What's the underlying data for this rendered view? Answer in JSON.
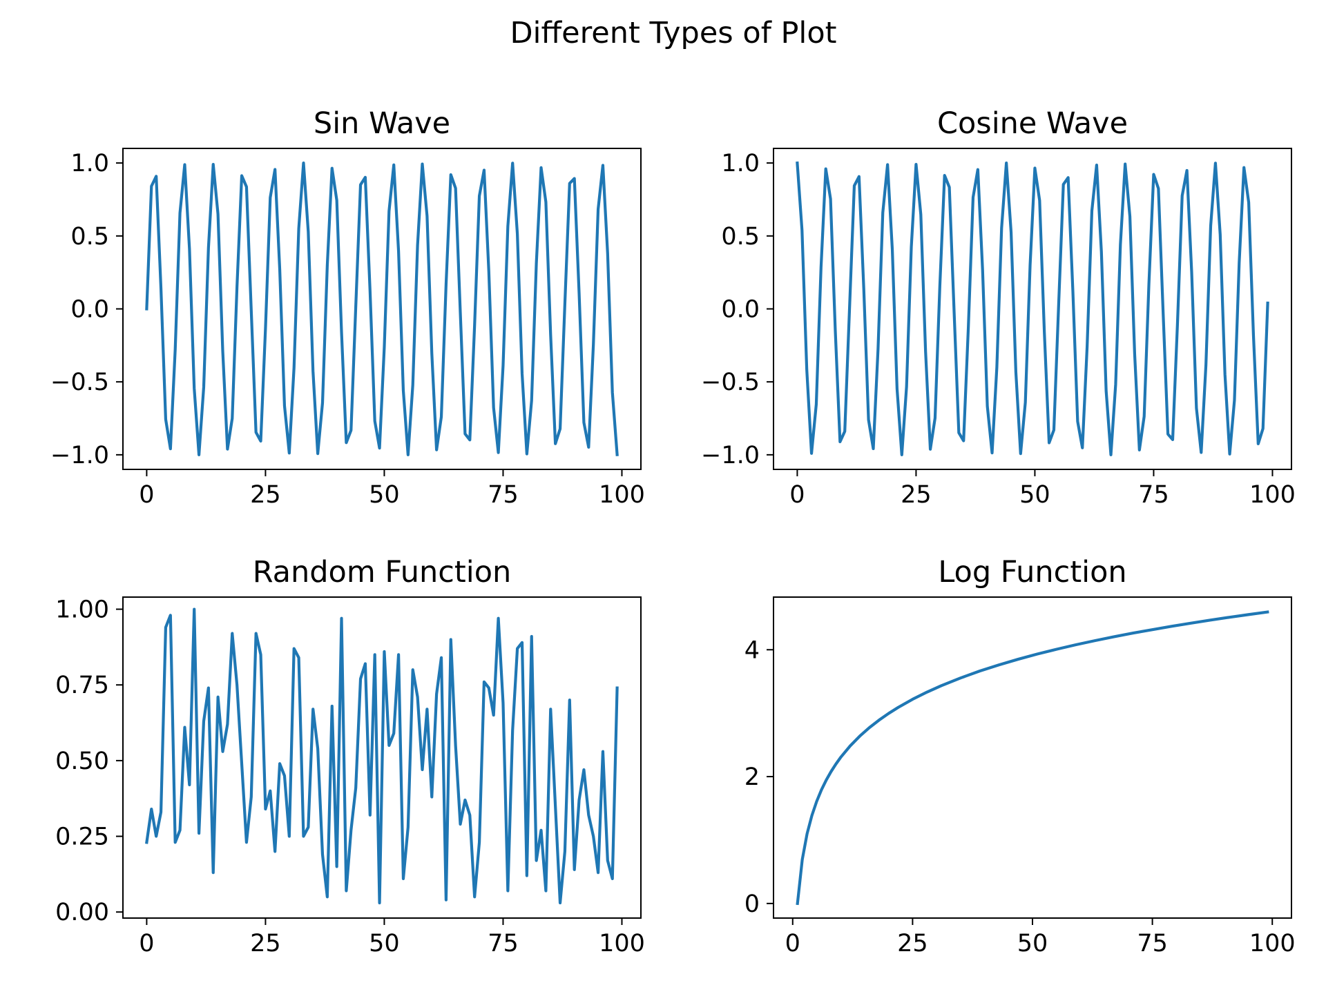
{
  "figure": {
    "title": "Different Types of Plot"
  },
  "style": {
    "line_color": "#1f77b4",
    "axis_color": "#000000",
    "background": "#ffffff"
  },
  "chart_data": [
    {
      "type": "line",
      "title": "Sin Wave",
      "xlabel": "",
      "ylabel": "",
      "xlim": [
        -5,
        104
      ],
      "ylim": [
        -1.1,
        1.1
      ],
      "xticks": [
        0,
        25,
        50,
        75,
        100
      ],
      "yticks": [
        -1.0,
        -0.5,
        0.0,
        0.5,
        1.0
      ],
      "xtick_labels": [
        "0",
        "25",
        "50",
        "75",
        "100"
      ],
      "ytick_labels": [
        "−1.0",
        "−0.5",
        "0.0",
        "0.5",
        "1.0"
      ],
      "grid": false,
      "x": [
        0,
        1,
        2,
        3,
        4,
        5,
        6,
        7,
        8,
        9,
        10,
        11,
        12,
        13,
        14,
        15,
        16,
        17,
        18,
        19,
        20,
        21,
        22,
        23,
        24,
        25,
        26,
        27,
        28,
        29,
        30,
        31,
        32,
        33,
        34,
        35,
        36,
        37,
        38,
        39,
        40,
        41,
        42,
        43,
        44,
        45,
        46,
        47,
        48,
        49,
        50,
        51,
        52,
        53,
        54,
        55,
        56,
        57,
        58,
        59,
        60,
        61,
        62,
        63,
        64,
        65,
        66,
        67,
        68,
        69,
        70,
        71,
        72,
        73,
        74,
        75,
        76,
        77,
        78,
        79,
        80,
        81,
        82,
        83,
        84,
        85,
        86,
        87,
        88,
        89,
        90,
        91,
        92,
        93,
        94,
        95,
        96,
        97,
        98,
        99
      ],
      "values": [
        0,
        0.841,
        0.909,
        0.141,
        -0.757,
        -0.959,
        -0.279,
        0.657,
        0.989,
        0.412,
        -0.544,
        -1.0,
        -0.537,
        0.42,
        0.991,
        0.65,
        -0.288,
        -0.961,
        -0.751,
        0.15,
        0.913,
        0.837,
        -0.009,
        -0.846,
        -0.906,
        -0.132,
        0.763,
        0.956,
        0.271,
        -0.664,
        -0.988,
        -0.404,
        0.551,
        1.0,
        0.529,
        -0.428,
        -0.992,
        -0.644,
        0.296,
        0.964,
        0.745,
        -0.159,
        -0.917,
        -0.832,
        0.018,
        0.851,
        0.902,
        0.124,
        -0.768,
        -0.954,
        -0.262,
        0.67,
        0.987,
        0.396,
        -0.559,
        -1.0,
        -0.522,
        0.436,
        0.993,
        0.637,
        -0.305,
        -0.966,
        -0.74,
        0.167,
        0.92,
        0.827,
        -0.027,
        -0.856,
        -0.898,
        -0.115,
        0.774,
        0.951,
        0.254,
        -0.677,
        -0.985,
        -0.388,
        0.566,
        0.999,
        0.514,
        -0.444,
        -0.994,
        -0.629,
        0.313,
        0.968,
        0.733,
        -0.176,
        -0.924,
        -0.822,
        0.035,
        0.86,
        0.894,
        0.106,
        -0.779,
        -0.948,
        -0.245,
        0.683,
        0.984,
        0.38,
        -0.573,
        -0.999
      ]
    },
    {
      "type": "line",
      "title": "Cosine Wave",
      "xlabel": "",
      "ylabel": "",
      "xlim": [
        -5,
        104
      ],
      "ylim": [
        -1.1,
        1.1
      ],
      "xticks": [
        0,
        25,
        50,
        75,
        100
      ],
      "yticks": [
        -1.0,
        -0.5,
        0.0,
        0.5,
        1.0
      ],
      "xtick_labels": [
        "0",
        "25",
        "50",
        "75",
        "100"
      ],
      "ytick_labels": [
        "−1.0",
        "−0.5",
        "0.0",
        "0.5",
        "1.0"
      ],
      "grid": false,
      "x": [
        0,
        1,
        2,
        3,
        4,
        5,
        6,
        7,
        8,
        9,
        10,
        11,
        12,
        13,
        14,
        15,
        16,
        17,
        18,
        19,
        20,
        21,
        22,
        23,
        24,
        25,
        26,
        27,
        28,
        29,
        30,
        31,
        32,
        33,
        34,
        35,
        36,
        37,
        38,
        39,
        40,
        41,
        42,
        43,
        44,
        45,
        46,
        47,
        48,
        49,
        50,
        51,
        52,
        53,
        54,
        55,
        56,
        57,
        58,
        59,
        60,
        61,
        62,
        63,
        64,
        65,
        66,
        67,
        68,
        69,
        70,
        71,
        72,
        73,
        74,
        75,
        76,
        77,
        78,
        79,
        80,
        81,
        82,
        83,
        84,
        85,
        86,
        87,
        88,
        89,
        90,
        91,
        92,
        93,
        94,
        95,
        96,
        97,
        98,
        99
      ],
      "values": [
        1.0,
        0.54,
        -0.416,
        -0.99,
        -0.654,
        0.284,
        0.96,
        0.754,
        -0.146,
        -0.911,
        -0.839,
        0.004,
        0.844,
        0.907,
        0.137,
        -0.76,
        -0.958,
        -0.275,
        0.66,
        0.989,
        0.408,
        -0.548,
        -1.0,
        -0.533,
        0.424,
        0.991,
        0.647,
        -0.292,
        -0.962,
        -0.748,
        0.154,
        0.915,
        0.834,
        -0.013,
        -0.849,
        -0.904,
        -0.128,
        0.765,
        0.955,
        0.267,
        -0.667,
        -0.987,
        -0.4,
        0.555,
        1.0,
        0.525,
        -0.432,
        -0.992,
        -0.64,
        0.301,
        0.965,
        0.743,
        -0.163,
        -0.918,
        -0.83,
        0.022,
        0.853,
        0.9,
        0.119,
        -0.771,
        -0.952,
        -0.258,
        0.673,
        0.986,
        0.392,
        -0.562,
        -1.0,
        -0.518,
        0.44,
        0.993,
        0.633,
        -0.309,
        -0.967,
        -0.737,
        0.172,
        0.922,
        0.825,
        -0.031,
        -0.858,
        -0.896,
        -0.11,
        0.776,
        0.949,
        0.25,
        -0.68,
        -0.984,
        -0.384,
        0.57,
        0.999,
        0.51,
        -0.448,
        -0.995,
        -0.626,
        0.318,
        0.969,
        0.73,
        -0.18,
        -0.925,
        -0.82,
        0.04
      ]
    },
    {
      "type": "line",
      "title": "Random Function",
      "xlabel": "",
      "ylabel": "",
      "xlim": [
        -5,
        104
      ],
      "ylim": [
        -0.02,
        1.04
      ],
      "xticks": [
        0,
        25,
        50,
        75,
        100
      ],
      "yticks": [
        0.0,
        0.25,
        0.5,
        0.75,
        1.0
      ],
      "xtick_labels": [
        "0",
        "25",
        "50",
        "75",
        "100"
      ],
      "ytick_labels": [
        "0.00",
        "0.25",
        "0.50",
        "0.75",
        "1.00"
      ],
      "grid": false,
      "x": [
        0,
        1,
        2,
        3,
        4,
        5,
        6,
        7,
        8,
        9,
        10,
        11,
        12,
        13,
        14,
        15,
        16,
        17,
        18,
        19,
        20,
        21,
        22,
        23,
        24,
        25,
        26,
        27,
        28,
        29,
        30,
        31,
        32,
        33,
        34,
        35,
        36,
        37,
        38,
        39,
        40,
        41,
        42,
        43,
        44,
        45,
        46,
        47,
        48,
        49,
        50,
        51,
        52,
        53,
        54,
        55,
        56,
        57,
        58,
        59,
        60,
        61,
        62,
        63,
        64,
        65,
        66,
        67,
        68,
        69,
        70,
        71,
        72,
        73,
        74,
        75,
        76,
        77,
        78,
        79,
        80,
        81,
        82,
        83,
        84,
        85,
        86,
        87,
        88,
        89,
        90,
        91,
        92,
        93,
        94,
        95,
        96,
        97,
        98,
        99
      ],
      "values": [
        0.23,
        0.34,
        0.25,
        0.33,
        0.94,
        0.98,
        0.23,
        0.27,
        0.61,
        0.42,
        1.0,
        0.26,
        0.63,
        0.74,
        0.13,
        0.71,
        0.53,
        0.62,
        0.92,
        0.75,
        0.49,
        0.23,
        0.38,
        0.92,
        0.85,
        0.34,
        0.4,
        0.2,
        0.49,
        0.45,
        0.25,
        0.87,
        0.84,
        0.25,
        0.28,
        0.67,
        0.54,
        0.19,
        0.05,
        0.68,
        0.15,
        0.97,
        0.07,
        0.27,
        0.41,
        0.77,
        0.82,
        0.32,
        0.85,
        0.03,
        0.86,
        0.55,
        0.59,
        0.85,
        0.11,
        0.28,
        0.8,
        0.71,
        0.47,
        0.67,
        0.38,
        0.72,
        0.84,
        0.04,
        0.9,
        0.55,
        0.29,
        0.37,
        0.32,
        0.05,
        0.23,
        0.76,
        0.74,
        0.65,
        0.97,
        0.69,
        0.07,
        0.6,
        0.87,
        0.89,
        0.12,
        0.91,
        0.17,
        0.27,
        0.07,
        0.67,
        0.35,
        0.03,
        0.2,
        0.7,
        0.14,
        0.37,
        0.47,
        0.32,
        0.25,
        0.13,
        0.53,
        0.17,
        0.11,
        0.74
      ]
    },
    {
      "type": "line",
      "title": "Log Function",
      "xlabel": "",
      "ylabel": "",
      "xlim": [
        -4,
        104
      ],
      "ylim": [
        -0.23,
        4.83
      ],
      "xticks": [
        0,
        25,
        50,
        75,
        100
      ],
      "yticks": [
        0,
        2,
        4
      ],
      "xtick_labels": [
        "0",
        "25",
        "50",
        "75",
        "100"
      ],
      "ytick_labels": [
        "0",
        "2",
        "4"
      ],
      "grid": false,
      "x": [
        1,
        2,
        3,
        4,
        5,
        6,
        7,
        8,
        9,
        10,
        12,
        14,
        16,
        18,
        20,
        22,
        25,
        28,
        31,
        35,
        39,
        43,
        47,
        51,
        55,
        59,
        63,
        67,
        71,
        75,
        79,
        83,
        87,
        91,
        95,
        99
      ],
      "values": [
        0,
        0.693,
        1.099,
        1.386,
        1.609,
        1.792,
        1.946,
        2.079,
        2.197,
        2.303,
        2.485,
        2.639,
        2.773,
        2.89,
        2.996,
        3.091,
        3.219,
        3.332,
        3.434,
        3.555,
        3.664,
        3.761,
        3.85,
        3.932,
        4.007,
        4.078,
        4.143,
        4.205,
        4.263,
        4.317,
        4.369,
        4.419,
        4.466,
        4.511,
        4.554,
        4.595
      ]
    }
  ]
}
